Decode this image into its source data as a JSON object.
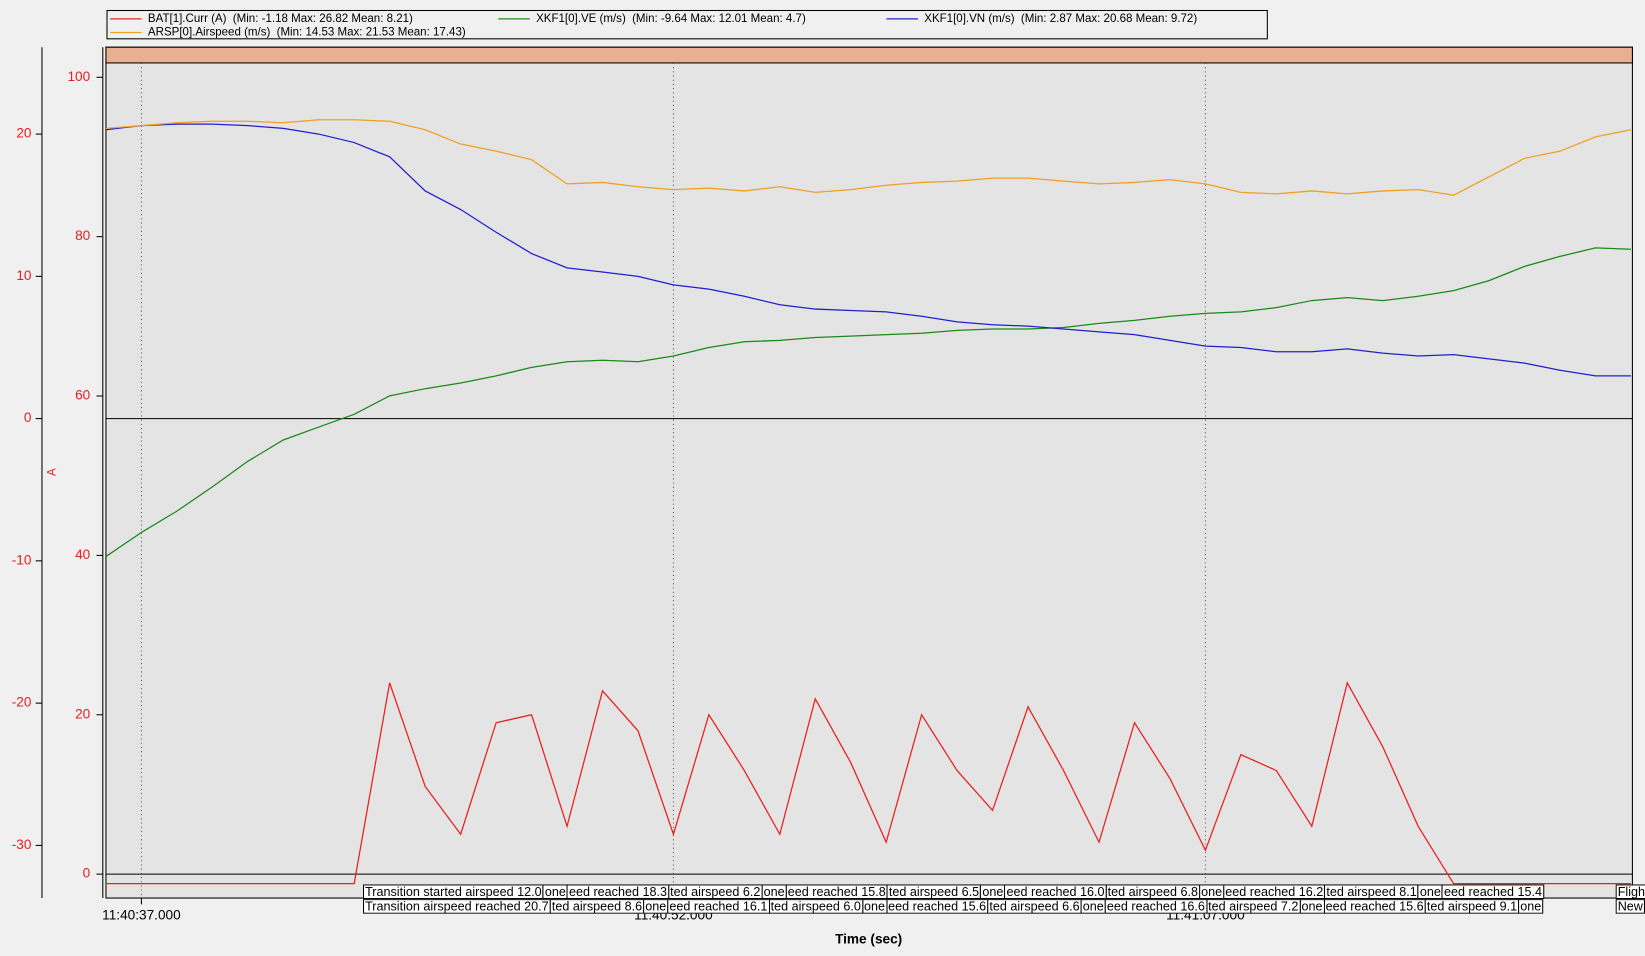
{
  "chart_data": {
    "type": "line",
    "xlabel": "Time (sec)",
    "y2label": "A",
    "x": [
      36,
      37,
      38,
      39,
      40,
      41,
      42,
      43,
      44,
      45,
      46,
      47,
      48,
      49,
      50,
      51,
      52,
      53,
      54,
      55,
      56,
      57,
      58,
      59,
      60,
      61,
      62,
      63,
      64,
      65,
      66,
      67,
      68,
      69,
      70,
      71,
      72,
      73,
      74,
      75,
      76,
      77,
      78,
      79
    ],
    "xlim": [
      36,
      79.04
    ],
    "xticks": [
      {
        "value": 37,
        "label": "11:40:37.000"
      },
      {
        "value": 52,
        "label": "11:40:52.000"
      },
      {
        "value": 67,
        "label": "11:41:07.000"
      }
    ],
    "ylim": [
      -33.7,
      25.0
    ],
    "yticks": [
      -30,
      -20,
      -10,
      0,
      10,
      20
    ],
    "y2lim": [
      -3.0,
      101.8
    ],
    "y2ticks": [
      0,
      20,
      40,
      60,
      80,
      100
    ],
    "grid": true,
    "series": [
      {
        "name": "BAT[1].Curr (A)",
        "stats": "(Min: -1.18 Max: 26.82 Mean: 8.21)",
        "color": "#e82020",
        "axis": "y2",
        "values": [
          -1.2,
          -1.2,
          -1.2,
          -1.2,
          -1.2,
          -1.2,
          -1.2,
          -1.2,
          24,
          11,
          5,
          19,
          20,
          6,
          23,
          18,
          5,
          20,
          13,
          5,
          22,
          14,
          4,
          20,
          13,
          8,
          21,
          13,
          4,
          19,
          12,
          3,
          15,
          13,
          6,
          24,
          16,
          6,
          -1.2,
          -1.2,
          -1.2,
          -1.2,
          -1.2,
          -1.2
        ]
      },
      {
        "name": "XKF1[0].VE (m/s)",
        "stats": "(Min: -9.64 Max: 12.01 Mean: 4.7)",
        "color": "#1a8a1a",
        "values": [
          -9.7,
          -8.0,
          -6.5,
          -4.8,
          -3.0,
          -1.5,
          -0.6,
          0.3,
          1.6,
          2.1,
          2.5,
          3.0,
          3.6,
          4.0,
          4.1,
          4.0,
          4.4,
          5.0,
          5.4,
          5.5,
          5.7,
          5.8,
          5.9,
          6.0,
          6.2,
          6.3,
          6.3,
          6.4,
          6.7,
          6.9,
          7.2,
          7.4,
          7.5,
          7.8,
          8.3,
          8.5,
          8.3,
          8.6,
          9.0,
          9.7,
          10.7,
          11.4,
          12.0,
          11.9
        ]
      },
      {
        "name": "XKF1[0].VN (m/s)",
        "stats": "(Min: 2.87 Max: 20.68 Mean: 9.72)",
        "color": "#2020d0",
        "values": [
          20.3,
          20.6,
          20.7,
          20.7,
          20.6,
          20.4,
          20.0,
          19.4,
          18.4,
          16.0,
          14.7,
          13.1,
          11.6,
          10.6,
          10.3,
          10.0,
          9.4,
          9.1,
          8.6,
          8.0,
          7.7,
          7.6,
          7.5,
          7.2,
          6.8,
          6.6,
          6.5,
          6.3,
          6.1,
          5.9,
          5.5,
          5.1,
          5.0,
          4.7,
          4.7,
          4.9,
          4.6,
          4.4,
          4.5,
          4.2,
          3.9,
          3.4,
          3.0,
          3.0
        ]
      },
      {
        "name": "ARSP[0].Airspeed (m/s)",
        "stats": "(Min: 14.53 Max: 21.53 Mean: 17.43)",
        "color": "#f0a020",
        "values": [
          20.4,
          20.6,
          20.8,
          20.9,
          20.9,
          20.8,
          21.0,
          21.0,
          20.9,
          20.3,
          19.3,
          18.8,
          18.2,
          16.5,
          16.6,
          16.3,
          16.1,
          16.2,
          16.0,
          16.3,
          15.9,
          16.1,
          16.4,
          16.6,
          16.7,
          16.9,
          16.9,
          16.7,
          16.5,
          16.6,
          16.8,
          16.5,
          15.9,
          15.8,
          16.0,
          15.8,
          16.0,
          16.1,
          15.7,
          17.0,
          18.3,
          18.8,
          19.8,
          20.3
        ]
      }
    ],
    "events_row1": [
      "Transition started airspeed 12.0",
      "one",
      "eed reached 18.3",
      "ted airspeed 6.2",
      "one",
      "eed reached 15.8",
      "ted airspeed 6.5",
      "one",
      "eed reached 16.0",
      "ted airspeed 6.8",
      "one",
      "eed reached 16.2",
      "ted airspeed 8.1",
      "one",
      "eed reached 15.4"
    ],
    "events_row2": [
      "Transition airspeed reached 20.7",
      "ted airspeed 8.6",
      "one",
      "eed reached 16.1",
      "ted airspeed 6.0",
      "one",
      "eed reached 15.6",
      "ted airspeed 6.6",
      "one",
      "eed reached 16.6",
      "ted airspeed 7.2",
      "one",
      "eed reached 15.6",
      "ted airspeed 9.1",
      "one"
    ],
    "events_tail": [
      "Fligh",
      "New"
    ]
  }
}
